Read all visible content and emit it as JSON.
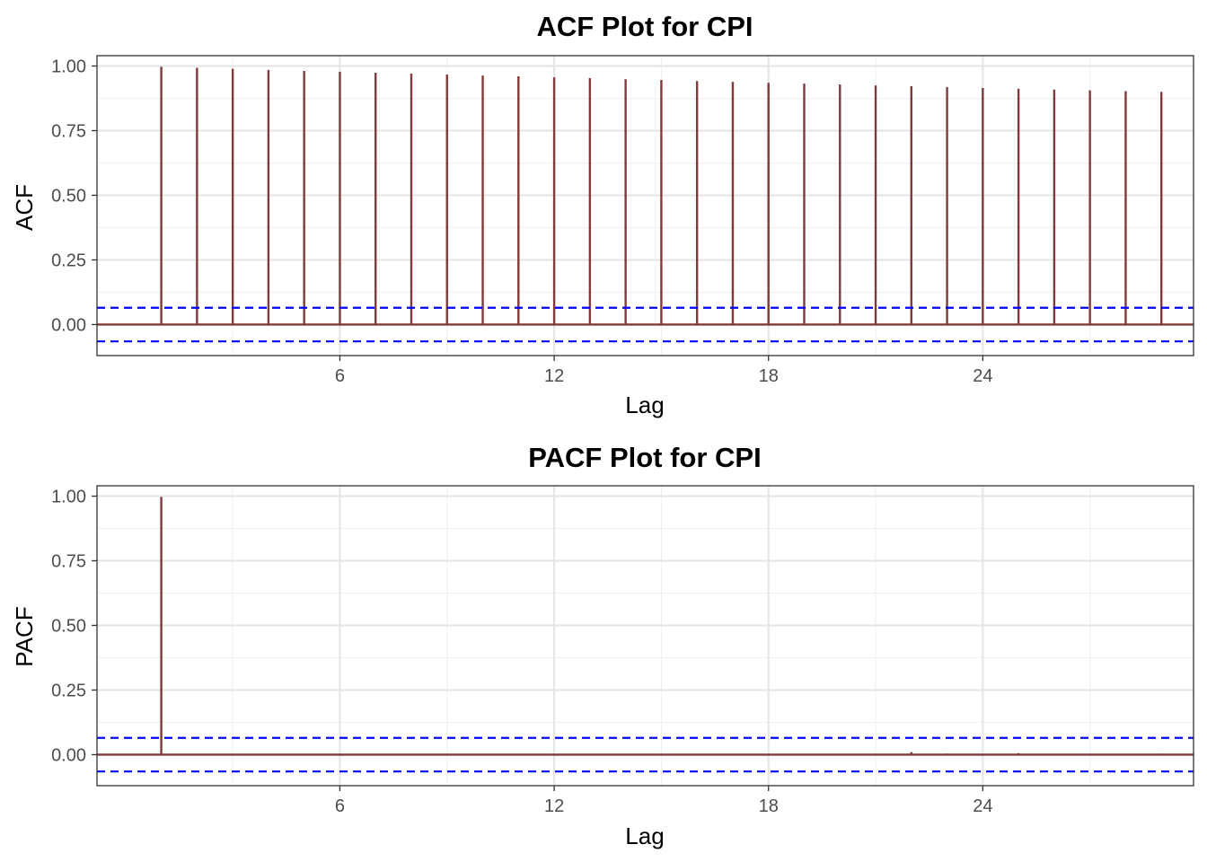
{
  "chart_data": [
    {
      "type": "bar",
      "subtype": "acf-stem",
      "title": "ACF Plot for CPI",
      "xlabel": "Lag",
      "ylabel": "ACF",
      "xlim": [
        -0.8,
        29.9
      ],
      "ylim": [
        -0.12,
        1.04
      ],
      "xticks": [
        6,
        12,
        18,
        24
      ],
      "xtick_labels": [
        "6",
        "12",
        "18",
        "24"
      ],
      "yticks": [
        0.0,
        0.25,
        0.5,
        0.75,
        1.0
      ],
      "ytick_labels": [
        "0.00",
        "0.25",
        "0.50",
        "0.75",
        "1.00"
      ],
      "grid": true,
      "confidence_band": [
        -0.065,
        0.065
      ],
      "lags": [
        1,
        2,
        3,
        4,
        5,
        6,
        7,
        8,
        9,
        10,
        11,
        12,
        13,
        14,
        15,
        16,
        17,
        18,
        19,
        20,
        21,
        22,
        23,
        24,
        25,
        26,
        27,
        28,
        29
      ],
      "values": [
        0.997,
        0.993,
        0.989,
        0.985,
        0.981,
        0.978,
        0.974,
        0.971,
        0.967,
        0.963,
        0.96,
        0.956,
        0.953,
        0.949,
        0.946,
        0.942,
        0.939,
        0.935,
        0.932,
        0.929,
        0.925,
        0.922,
        0.919,
        0.915,
        0.912,
        0.909,
        0.906,
        0.903,
        0.9
      ],
      "colors": {
        "spike": "#7f3b3b",
        "ci": "#0000ff"
      }
    },
    {
      "type": "bar",
      "subtype": "pacf-stem",
      "title": "PACF Plot for CPI",
      "xlabel": "Lag",
      "ylabel": "PACF",
      "xlim": [
        -0.8,
        29.9
      ],
      "ylim": [
        -0.12,
        1.04
      ],
      "xticks": [
        6,
        12,
        18,
        24
      ],
      "xtick_labels": [
        "6",
        "12",
        "18",
        "24"
      ],
      "yticks": [
        0.0,
        0.25,
        0.5,
        0.75,
        1.0
      ],
      "ytick_labels": [
        "0.00",
        "0.25",
        "0.50",
        "0.75",
        "1.00"
      ],
      "grid": true,
      "confidence_band": [
        -0.065,
        0.065
      ],
      "lags": [
        1,
        2,
        3,
        4,
        5,
        6,
        7,
        8,
        9,
        10,
        11,
        12,
        13,
        14,
        15,
        16,
        17,
        18,
        19,
        20,
        21,
        22,
        23,
        24,
        25,
        26,
        27,
        28,
        29
      ],
      "values": [
        0.997,
        -0.001,
        0.0,
        -0.001,
        0.0,
        0.0,
        -0.001,
        0.0,
        -0.001,
        0.0,
        0.0,
        -0.001,
        0.0,
        0.0,
        -0.001,
        0.0,
        0.0,
        -0.001,
        0.0,
        0.0,
        0.001,
        0.01,
        0.004,
        -0.002,
        0.006,
        0.001,
        -0.002,
        0.0,
        0.004
      ],
      "colors": {
        "spike": "#7f3b3b",
        "ci": "#0000ff"
      }
    }
  ]
}
